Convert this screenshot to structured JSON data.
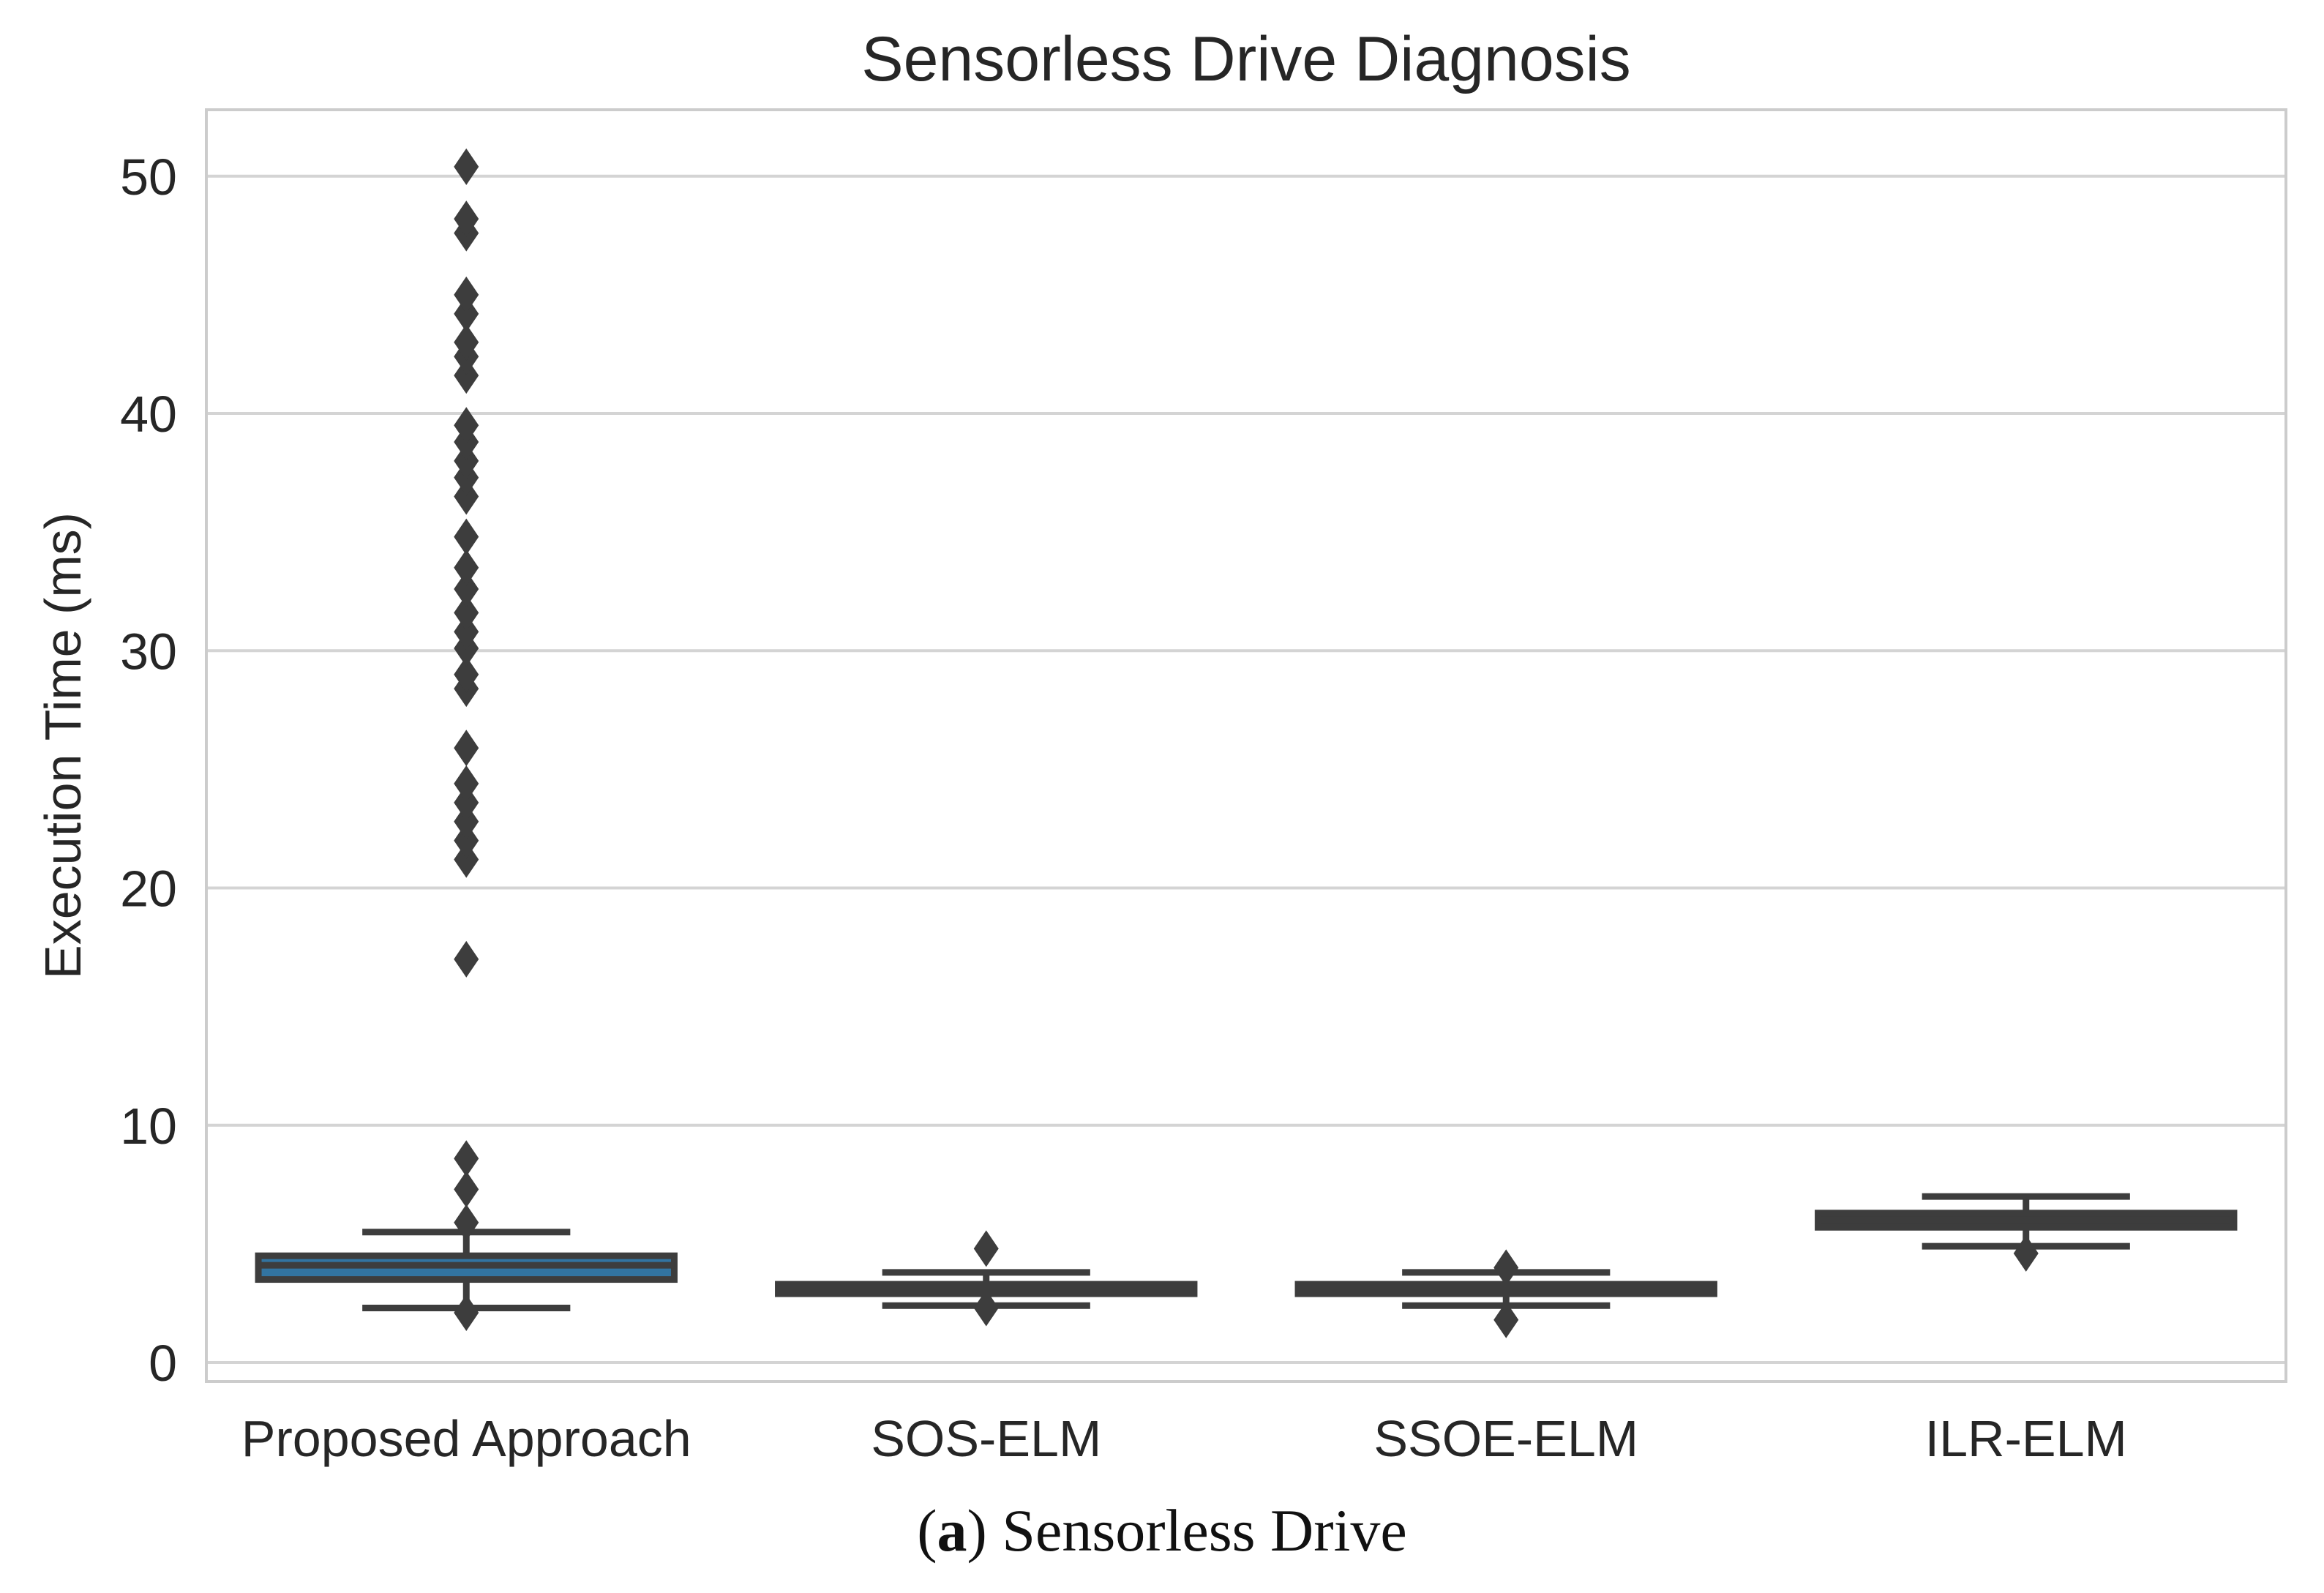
{
  "chart_data": {
    "type": "box",
    "title": "Sensorless Drive Diagnosis",
    "xlabel": "",
    "ylabel": "Execution Time (ms)",
    "ylim": [
      -0.8,
      52.8
    ],
    "yticks": [
      0,
      10,
      20,
      30,
      40,
      50
    ],
    "grid": true,
    "categories": [
      "Proposed Approach",
      "SOS-ELM",
      "SSOE-ELM",
      "ILR-ELM"
    ],
    "boxes": [
      {
        "name": "Proposed Approach",
        "whisker_low": 2.3,
        "q1": 3.5,
        "median": 4.1,
        "q3": 4.5,
        "whisker_high": 5.5,
        "median_color": "#3274a1",
        "outliers": [
          2.1,
          5.9,
          7.3,
          8.6,
          17.0,
          21.2,
          22.0,
          22.8,
          23.6,
          24.4,
          25.9,
          28.4,
          29.0,
          30.1,
          30.8,
          31.6,
          32.6,
          33.5,
          34.8,
          36.5,
          37.3,
          38.0,
          38.8,
          39.5,
          41.6,
          42.4,
          43.0,
          44.2,
          45.0,
          47.6,
          48.2,
          50.4
        ]
      },
      {
        "name": "SOS-ELM",
        "whisker_low": 2.4,
        "q1": 2.9,
        "median": 3.1,
        "q3": 3.3,
        "whisker_high": 3.8,
        "median_color": "#3d3d3d",
        "outliers": [
          2.3,
          4.8
        ]
      },
      {
        "name": "SSOE-ELM",
        "whisker_low": 2.4,
        "q1": 2.9,
        "median": 3.1,
        "q3": 3.3,
        "whisker_high": 3.8,
        "median_color": "#3d3d3d",
        "outliers": [
          1.8,
          4.0
        ]
      },
      {
        "name": "ILR-ELM",
        "whisker_low": 4.9,
        "q1": 5.7,
        "median": 6.0,
        "q3": 6.3,
        "whisker_high": 7.0,
        "median_color": "#3d3d3d",
        "outliers": [
          4.6
        ]
      }
    ],
    "colors": {
      "box_line": "#3d3d3d",
      "grid": "#d4d4d4",
      "spine": "#cccccc",
      "text": "#262626"
    }
  },
  "caption": {
    "label": "(a)",
    "text": "Sensorless Drive"
  }
}
